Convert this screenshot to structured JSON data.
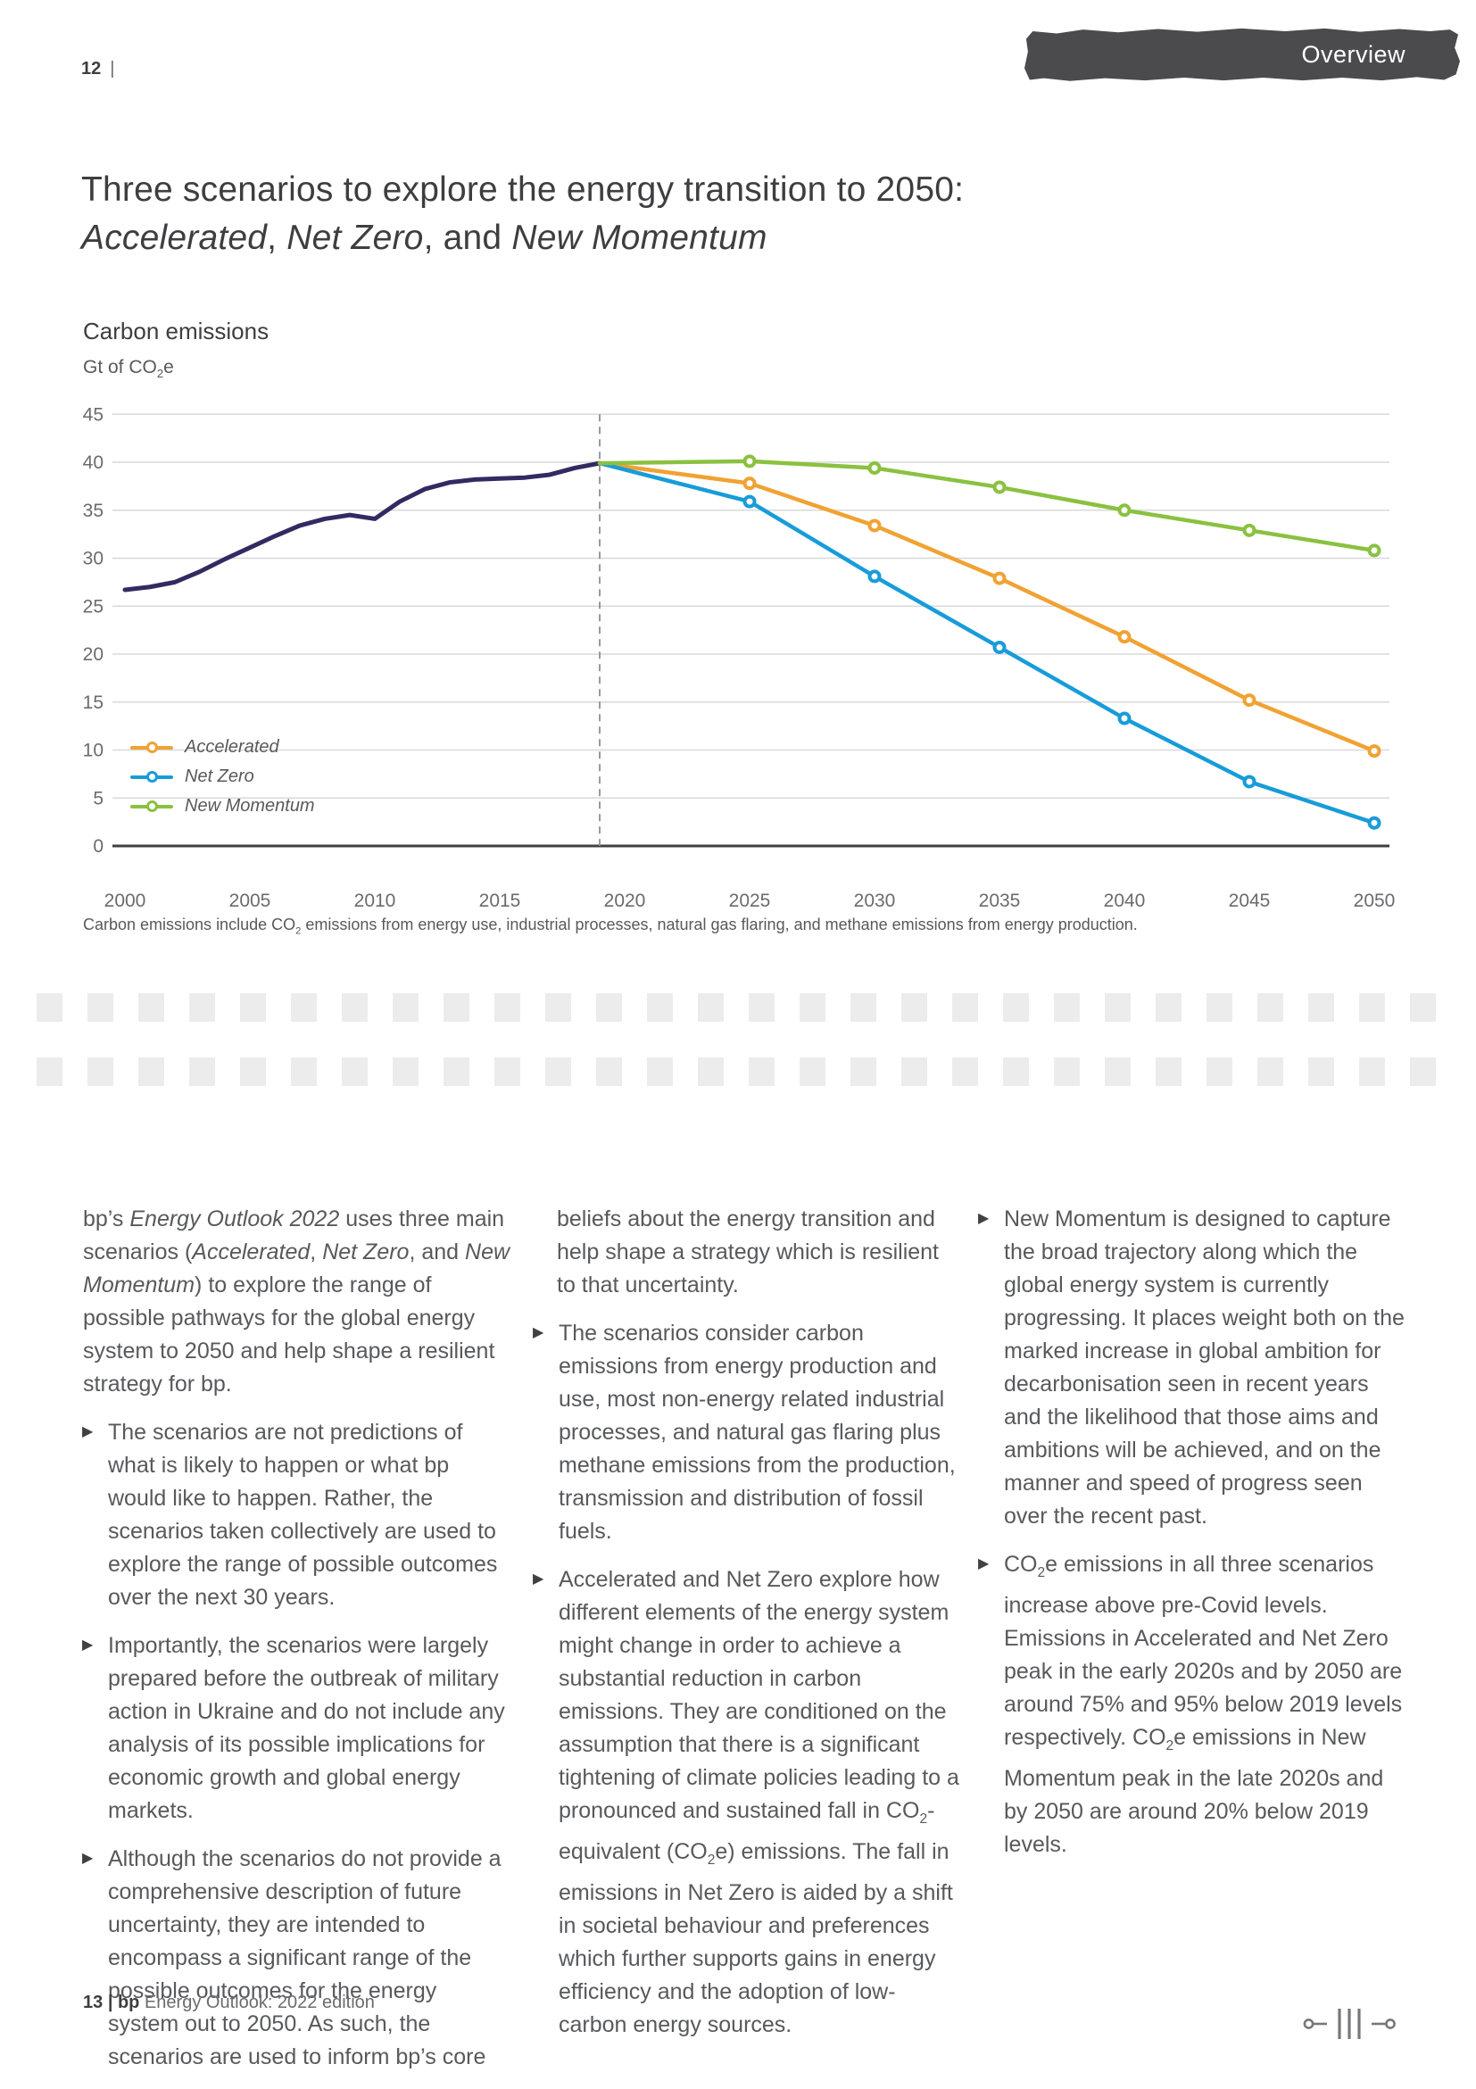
{
  "page": {
    "number": "12",
    "separator": "|"
  },
  "banner": {
    "label": "Overview",
    "bg": "#4B4B4D"
  },
  "title": {
    "line1": "Three scenarios to explore the energy transition to 2050:",
    "line2": [
      {
        "t": "Accelerated",
        "s": "i"
      },
      {
        "t": ", "
      },
      {
        "t": "Net Zero",
        "s": "i"
      },
      {
        "t": ", and "
      },
      {
        "t": "New Momentum",
        "s": "i"
      }
    ]
  },
  "chart": {
    "heading": "Carbon emissions",
    "unit": [
      {
        "t": "Gt of CO"
      },
      {
        "t": "2",
        "s": "sub"
      },
      {
        "t": "e"
      }
    ],
    "footnote": [
      {
        "t": "Carbon emissions include CO"
      },
      {
        "t": "2",
        "s": "sub"
      },
      {
        "t": " emissions from energy use, industrial processes, natural gas flaring, and methane emissions from energy production."
      }
    ]
  },
  "chart_data": {
    "type": "line",
    "title": "Carbon emissions",
    "ylabel": "Gt of CO2e",
    "xlim": [
      2000,
      2050
    ],
    "ylim": [
      0,
      45
    ],
    "ytick_step": 5,
    "xticks": [
      2000,
      2005,
      2010,
      2015,
      2020,
      2025,
      2030,
      2035,
      2040,
      2045,
      2050
    ],
    "grid": "horizontal",
    "divider_year": 2019,
    "legend_position": "inside-left",
    "colors": {
      "grid": "#D9D9D9",
      "axis": "#3F4042",
      "divider": "#8F9092",
      "ticks": "#6A6B6E"
    },
    "series": [
      {
        "name": "History",
        "color": "#312B62",
        "width": 5,
        "markers": false,
        "in_legend": false,
        "x": [
          2000,
          2001,
          2002,
          2003,
          2004,
          2005,
          2006,
          2007,
          2008,
          2009,
          2010,
          2011,
          2012,
          2013,
          2014,
          2015,
          2016,
          2017,
          2018,
          2019
        ],
        "values": [
          26.7,
          27.0,
          27.5,
          28.6,
          29.9,
          31.1,
          32.3,
          33.4,
          34.1,
          34.5,
          34.1,
          35.9,
          37.2,
          37.9,
          38.2,
          38.3,
          38.4,
          38.7,
          39.4,
          39.9
        ]
      },
      {
        "name": "Accelerated",
        "color": "#F0A233",
        "width": 4.5,
        "markers": true,
        "in_legend": true,
        "x": [
          2019,
          2025,
          2030,
          2035,
          2040,
          2045,
          2050
        ],
        "values": [
          39.9,
          37.8,
          33.4,
          27.9,
          21.8,
          15.2,
          9.9
        ]
      },
      {
        "name": "Net Zero",
        "color": "#189CD9",
        "width": 4.5,
        "markers": true,
        "in_legend": true,
        "x": [
          2019,
          2025,
          2030,
          2035,
          2040,
          2045,
          2050
        ],
        "values": [
          39.9,
          35.9,
          28.1,
          20.7,
          13.3,
          6.7,
          2.4
        ]
      },
      {
        "name": "New Momentum",
        "color": "#8AC140",
        "width": 4.5,
        "markers": true,
        "in_legend": true,
        "x": [
          2019,
          2025,
          2030,
          2035,
          2040,
          2045,
          2050
        ],
        "values": [
          39.9,
          40.1,
          39.4,
          37.4,
          35.0,
          32.9,
          30.8
        ]
      }
    ]
  },
  "columns": [
    {
      "blocks": [
        {
          "type": "plain",
          "segs": [
            {
              "t": "bp’s "
            },
            {
              "t": "Energy Outlook 2022",
              "s": "i"
            },
            {
              "t": " uses three main scenarios ("
            },
            {
              "t": "Accelerated",
              "s": "i"
            },
            {
              "t": ", "
            },
            {
              "t": "Net Zero",
              "s": "i"
            },
            {
              "t": ", and "
            },
            {
              "t": "New Momentum",
              "s": "i"
            },
            {
              "t": ") to explore the range of possible pathways for the global energy system to 2050 and help shape a resilient strategy for bp."
            }
          ]
        },
        {
          "type": "bullet",
          "segs": [
            {
              "t": "The scenarios are not predictions of what is likely to happen or what bp would like to happen.  Rather, the scenarios taken collectively are used to explore the range of possible outcomes over the next 30 years."
            }
          ]
        },
        {
          "type": "bullet",
          "segs": [
            {
              "t": "Importantly, the scenarios were largely prepared before the outbreak of military action in Ukraine and do not include any analysis of its possible implications for economic growth and global energy markets."
            }
          ]
        },
        {
          "type": "bullet",
          "segs": [
            {
              "t": "Although the scenarios do not provide a comprehensive description of future uncertainty, they are intended to encompass a significant range of the possible outcomes for the energy system out to 2050.  As such, the scenarios are used to inform bp’s core"
            }
          ]
        }
      ]
    },
    {
      "blocks": [
        {
          "type": "cont",
          "segs": [
            {
              "t": "beliefs about the energy transition and help shape a strategy which is resilient to that uncertainty."
            }
          ]
        },
        {
          "type": "bullet",
          "segs": [
            {
              "t": "The scenarios consider carbon emissions from energy production and use, most non-energy related industrial processes, and natural gas flaring plus methane emissions from the production, transmission and distribution of fossil fuels."
            }
          ]
        },
        {
          "type": "bullet",
          "segs": [
            {
              "t": "Accelerated and Net Zero explore how different elements of the energy system might change in order to achieve a substantial reduction in carbon emissions.  They are conditioned on the assumption that there is a significant tightening of climate policies leading to a pronounced and sustained fall in CO"
            },
            {
              "t": "2",
              "s": "sub"
            },
            {
              "t": "-equivalent (CO"
            },
            {
              "t": "2",
              "s": "sub"
            },
            {
              "t": "e) emissions.  The fall in emissions in Net Zero is aided by a shift in societal behaviour and preferences which further supports gains in energy efficiency and the adoption of low-carbon energy sources."
            }
          ]
        }
      ]
    },
    {
      "blocks": [
        {
          "type": "bullet",
          "segs": [
            {
              "t": "New Momentum is designed to capture the broad trajectory along which the global energy system is currently progressing.  It places weight both on the marked increase in global ambition for decarbonisation seen in recent years and the likelihood that those aims and ambitions will be achieved, and on the manner and speed of progress seen over the recent past."
            }
          ]
        },
        {
          "type": "bullet",
          "segs": [
            {
              "t": "CO"
            },
            {
              "t": "2",
              "s": "sub"
            },
            {
              "t": "e emissions in all three scenarios increase above pre-Covid levels. Emissions in Accelerated and Net Zero peak in the early 2020s and by 2050 are around 75% and 95% below 2019 levels respectively.  CO"
            },
            {
              "t": "2",
              "s": "sub"
            },
            {
              "t": "e emissions in New Momentum peak in the late 2020s and by 2050 are around 20% below 2019 levels."
            }
          ]
        }
      ]
    }
  ],
  "icons": {
    "bullet_glyph": "▶"
  },
  "footer": {
    "segs": [
      {
        "t": "13 ",
        "s": "b"
      },
      {
        "t": "| ",
        "s": "b"
      },
      {
        "t": "bp",
        "s": "b"
      },
      {
        "t": " Energy Outlook: 2022 edition"
      }
    ]
  },
  "pager": {
    "color": "#77787B"
  }
}
